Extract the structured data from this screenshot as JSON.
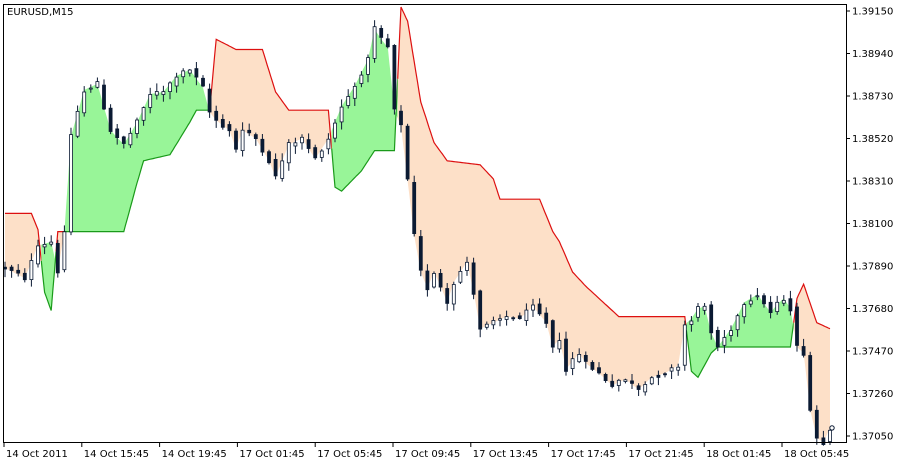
{
  "window": {
    "title": "EURUSD,M15"
  },
  "colors": {
    "background": "#ffffff",
    "frame": "#000000",
    "candle": "#0b1a33",
    "up_cloud_fill": "#98f598",
    "up_cloud_edge": "#1a9a1a",
    "down_cloud_fill": "#fde0c8",
    "down_cloud_edge": "#dd1010"
  },
  "chart_data": {
    "type": "candlestick",
    "title": "EURUSD,M15",
    "xlabel": "",
    "ylabel": "",
    "ylim": [
      1.369,
      1.392
    ],
    "y_ticks": [
      "1.39150",
      "1.38940",
      "1.38730",
      "1.38520",
      "1.38310",
      "1.38100",
      "1.37890",
      "1.37680",
      "1.37470",
      "1.37260",
      "1.37050"
    ],
    "x_ticks": [
      "14 Oct 2011",
      "14 Oct 15:45",
      "14 Oct 19:45",
      "17 Oct 01:45",
      "17 Oct 05:45",
      "17 Oct 09:45",
      "17 Oct 13:45",
      "17 Oct 17:45",
      "17 Oct 21:45",
      "18 Oct 01:45",
      "18 Oct 05:45"
    ],
    "current_price": 1.3709,
    "grid": false,
    "series": [
      {
        "role": "price",
        "points": [
          {
            "t": 0,
            "p": 1.3788
          },
          {
            "t": 3,
            "p": 1.3783
          },
          {
            "t": 5,
            "p": 1.3799
          },
          {
            "t": 7,
            "p": 1.3801
          },
          {
            "t": 8,
            "p": 1.3786
          },
          {
            "t": 9,
            "p": 1.3806
          },
          {
            "t": 10,
            "p": 1.3853
          },
          {
            "t": 12,
            "p": 1.3876
          },
          {
            "t": 14,
            "p": 1.3879
          },
          {
            "t": 16,
            "p": 1.3856
          },
          {
            "t": 18,
            "p": 1.3849
          },
          {
            "t": 20,
            "p": 1.386
          },
          {
            "t": 22,
            "p": 1.3874
          },
          {
            "t": 24,
            "p": 1.3875
          },
          {
            "t": 26,
            "p": 1.3883
          },
          {
            "t": 28,
            "p": 1.3886
          },
          {
            "t": 30,
            "p": 1.3877
          },
          {
            "t": 31,
            "p": 1.3865
          },
          {
            "t": 32,
            "p": 1.3861
          },
          {
            "t": 34,
            "p": 1.3856
          },
          {
            "t": 35,
            "p": 1.3847
          },
          {
            "t": 36,
            "p": 1.3856
          },
          {
            "t": 38,
            "p": 1.3852
          },
          {
            "t": 40,
            "p": 1.3841
          },
          {
            "t": 41,
            "p": 1.3833
          },
          {
            "t": 43,
            "p": 1.3849
          },
          {
            "t": 45,
            "p": 1.3852
          },
          {
            "t": 47,
            "p": 1.3842
          },
          {
            "t": 49,
            "p": 1.3852
          },
          {
            "t": 51,
            "p": 1.3868
          },
          {
            "t": 53,
            "p": 1.3878
          },
          {
            "t": 55,
            "p": 1.3891
          },
          {
            "t": 56,
            "p": 1.3906
          },
          {
            "t": 57,
            "p": 1.3901
          },
          {
            "t": 58,
            "p": 1.3897
          },
          {
            "t": 59,
            "p": 1.3866
          },
          {
            "t": 60,
            "p": 1.3858
          },
          {
            "t": 61,
            "p": 1.3831
          },
          {
            "t": 62,
            "p": 1.3804
          },
          {
            "t": 63,
            "p": 1.3786
          },
          {
            "t": 64,
            "p": 1.3778
          },
          {
            "t": 65,
            "p": 1.3786
          },
          {
            "t": 66,
            "p": 1.3779
          },
          {
            "t": 67,
            "p": 1.3771
          },
          {
            "t": 68,
            "p": 1.3781
          },
          {
            "t": 70,
            "p": 1.3791
          },
          {
            "t": 71,
            "p": 1.3776
          },
          {
            "t": 72,
            "p": 1.3758
          },
          {
            "t": 74,
            "p": 1.3761
          },
          {
            "t": 76,
            "p": 1.3764
          },
          {
            "t": 78,
            "p": 1.3763
          },
          {
            "t": 80,
            "p": 1.3769
          },
          {
            "t": 82,
            "p": 1.3761
          },
          {
            "t": 83,
            "p": 1.3749
          },
          {
            "t": 84,
            "p": 1.3753
          },
          {
            "t": 85,
            "p": 1.3738
          },
          {
            "t": 87,
            "p": 1.3746
          },
          {
            "t": 88,
            "p": 1.3741
          },
          {
            "t": 90,
            "p": 1.3736
          },
          {
            "t": 92,
            "p": 1.373
          },
          {
            "t": 94,
            "p": 1.3733
          },
          {
            "t": 96,
            "p": 1.3728
          },
          {
            "t": 98,
            "p": 1.3734
          },
          {
            "t": 100,
            "p": 1.3736
          },
          {
            "t": 102,
            "p": 1.374
          },
          {
            "t": 103,
            "p": 1.376
          },
          {
            "t": 104,
            "p": 1.3763
          },
          {
            "t": 105,
            "p": 1.3768
          },
          {
            "t": 106,
            "p": 1.3769
          },
          {
            "t": 107,
            "p": 1.3756
          },
          {
            "t": 108,
            "p": 1.3749
          },
          {
            "t": 110,
            "p": 1.3758
          },
          {
            "t": 112,
            "p": 1.3771
          },
          {
            "t": 114,
            "p": 1.3775
          },
          {
            "t": 116,
            "p": 1.3766
          },
          {
            "t": 117,
            "p": 1.377
          },
          {
            "t": 118,
            "p": 1.3773
          },
          {
            "t": 119,
            "p": 1.3768
          },
          {
            "t": 120,
            "p": 1.3749
          },
          {
            "t": 121,
            "p": 1.3746
          },
          {
            "t": 122,
            "p": 1.3718
          },
          {
            "t": 123,
            "p": 1.3704
          },
          {
            "t": 124,
            "p": 1.3702
          },
          {
            "t": 125,
            "p": 1.3709
          }
        ]
      },
      {
        "role": "band",
        "points": [
          {
            "t": 0,
            "p": 1.3815
          },
          {
            "t": 4,
            "p": 1.3815
          },
          {
            "t": 5,
            "p": 1.3807
          },
          {
            "t": 6,
            "p": 1.3776
          },
          {
            "t": 7,
            "p": 1.3767
          },
          {
            "t": 8,
            "p": 1.3806
          },
          {
            "t": 18,
            "p": 1.3806
          },
          {
            "t": 20,
            "p": 1.383
          },
          {
            "t": 21,
            "p": 1.3841
          },
          {
            "t": 25,
            "p": 1.3844
          },
          {
            "t": 28,
            "p": 1.386
          },
          {
            "t": 29,
            "p": 1.3866
          },
          {
            "t": 31,
            "p": 1.3866
          },
          {
            "t": 32,
            "p": 1.3901
          },
          {
            "t": 35,
            "p": 1.3896
          },
          {
            "t": 39,
            "p": 1.3896
          },
          {
            "t": 41,
            "p": 1.3875
          },
          {
            "t": 43,
            "p": 1.3866
          },
          {
            "t": 49,
            "p": 1.3866
          },
          {
            "t": 50,
            "p": 1.3828
          },
          {
            "t": 51,
            "p": 1.3826
          },
          {
            "t": 54,
            "p": 1.3836
          },
          {
            "t": 56,
            "p": 1.3846
          },
          {
            "t": 59,
            "p": 1.3846
          },
          {
            "t": 60,
            "p": 1.3917
          },
          {
            "t": 61,
            "p": 1.391
          },
          {
            "t": 63,
            "p": 1.387
          },
          {
            "t": 65,
            "p": 1.385
          },
          {
            "t": 67,
            "p": 1.3841
          },
          {
            "t": 72,
            "p": 1.3839
          },
          {
            "t": 74,
            "p": 1.3832
          },
          {
            "t": 75,
            "p": 1.3822
          },
          {
            "t": 81,
            "p": 1.3822
          },
          {
            "t": 83,
            "p": 1.3806
          },
          {
            "t": 84,
            "p": 1.3801
          },
          {
            "t": 86,
            "p": 1.3786
          },
          {
            "t": 88,
            "p": 1.3779
          },
          {
            "t": 91,
            "p": 1.377
          },
          {
            "t": 93,
            "p": 1.3764
          },
          {
            "t": 94,
            "p": 1.3764
          },
          {
            "t": 103,
            "p": 1.3764
          },
          {
            "t": 104,
            "p": 1.3737
          },
          {
            "t": 105,
            "p": 1.3734
          },
          {
            "t": 107,
            "p": 1.3746
          },
          {
            "t": 108,
            "p": 1.3749
          },
          {
            "t": 110,
            "p": 1.3749
          },
          {
            "t": 117,
            "p": 1.3749
          },
          {
            "t": 119,
            "p": 1.3749
          },
          {
            "t": 120,
            "p": 1.3773
          },
          {
            "t": 121,
            "p": 1.378
          },
          {
            "t": 123,
            "p": 1.3761
          },
          {
            "t": 125,
            "p": 1.3758
          }
        ]
      }
    ],
    "last_bar": 125
  }
}
